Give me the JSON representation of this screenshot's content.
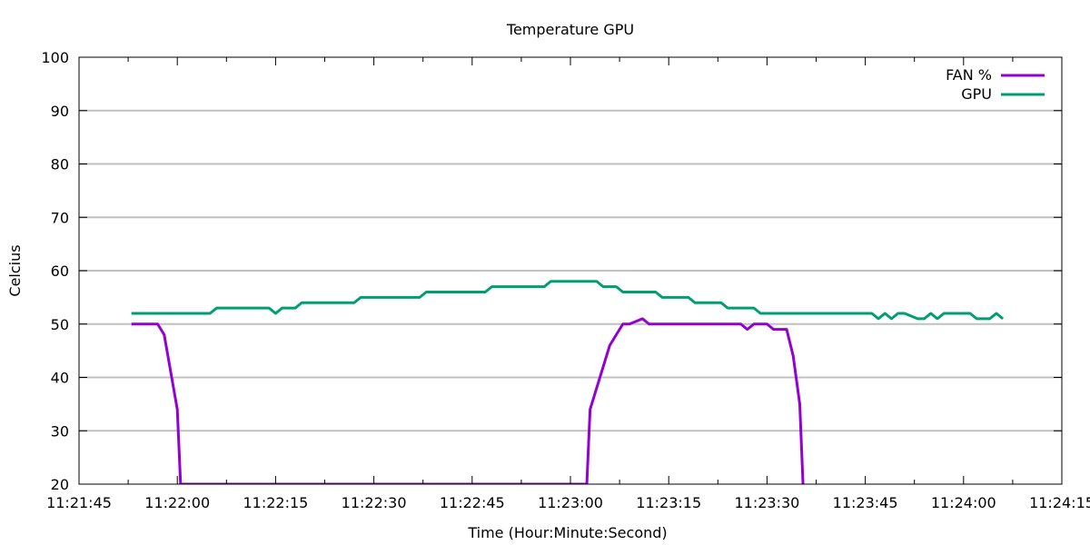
{
  "chart_data": {
    "type": "line",
    "title": "Temperature GPU",
    "xlabel": "Time (Hour:Minute:Second)",
    "ylabel": "Celcius",
    "xlim": [
      "11:21:45",
      "11:24:15"
    ],
    "ylim": [
      20,
      100
    ],
    "xticks": [
      "11:21:45",
      "11:22:00",
      "11:22:15",
      "11:22:30",
      "11:22:45",
      "11:23:00",
      "11:23:15",
      "11:23:30",
      "11:23:45",
      "11:24:00",
      "11:24:15"
    ],
    "yticks": [
      20,
      30,
      40,
      50,
      60,
      70,
      80,
      90,
      100
    ],
    "grid": "horizontal",
    "legend_position": "top-right",
    "series": [
      {
        "name": "FAN %",
        "color": "#9400d3",
        "points": [
          [
            "11:21:53",
            50
          ],
          [
            "11:21:57",
            50
          ],
          [
            "11:21:58",
            48
          ],
          [
            "11:22:00",
            34
          ],
          [
            "11:22:00.5",
            20
          ],
          [
            "11:23:02.5",
            20
          ],
          [
            "11:23:03",
            34
          ],
          [
            "11:23:06",
            46
          ],
          [
            "11:23:08",
            50
          ],
          [
            "11:23:09",
            50
          ],
          [
            "11:23:11",
            51
          ],
          [
            "11:23:12",
            50
          ],
          [
            "11:23:26",
            50
          ],
          [
            "11:23:27",
            49
          ],
          [
            "11:23:28",
            50
          ],
          [
            "11:23:30",
            50
          ],
          [
            "11:23:31",
            49
          ],
          [
            "11:23:33",
            49
          ],
          [
            "11:23:34",
            44
          ],
          [
            "11:23:35",
            35
          ],
          [
            "11:23:35.5",
            20
          ]
        ]
      },
      {
        "name": "GPU",
        "color": "#009e73",
        "points": [
          [
            "11:21:53",
            52
          ],
          [
            "11:22:05",
            52
          ],
          [
            "11:22:06",
            53
          ],
          [
            "11:22:14",
            53
          ],
          [
            "11:22:15",
            52
          ],
          [
            "11:22:16",
            53
          ],
          [
            "11:22:18",
            53
          ],
          [
            "11:22:19",
            54
          ],
          [
            "11:22:27",
            54
          ],
          [
            "11:22:28",
            55
          ],
          [
            "11:22:37",
            55
          ],
          [
            "11:22:38",
            56
          ],
          [
            "11:22:47",
            56
          ],
          [
            "11:22:48",
            57
          ],
          [
            "11:22:56",
            57
          ],
          [
            "11:22:57",
            58
          ],
          [
            "11:23:04",
            58
          ],
          [
            "11:23:05",
            57
          ],
          [
            "11:23:07",
            57
          ],
          [
            "11:23:08",
            56
          ],
          [
            "11:23:13",
            56
          ],
          [
            "11:23:14",
            55
          ],
          [
            "11:23:18",
            55
          ],
          [
            "11:23:19",
            54
          ],
          [
            "11:23:23",
            54
          ],
          [
            "11:23:24",
            53
          ],
          [
            "11:23:28",
            53
          ],
          [
            "11:23:29",
            52
          ],
          [
            "11:23:46",
            52
          ],
          [
            "11:23:47",
            51
          ],
          [
            "11:23:48",
            52
          ],
          [
            "11:23:49",
            51
          ],
          [
            "11:23:50",
            52
          ],
          [
            "11:23:51",
            52
          ],
          [
            "11:23:53",
            51
          ],
          [
            "11:23:54",
            51
          ],
          [
            "11:23:55",
            52
          ],
          [
            "11:23:56",
            51
          ],
          [
            "11:23:57",
            52
          ],
          [
            "11:24:01",
            52
          ],
          [
            "11:24:02",
            51
          ],
          [
            "11:24:04",
            51
          ],
          [
            "11:24:05",
            52
          ],
          [
            "11:24:06",
            51
          ]
        ]
      }
    ]
  }
}
